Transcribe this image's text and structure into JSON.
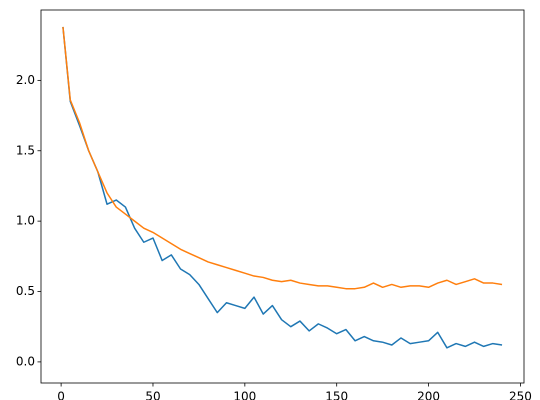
{
  "chart_data": {
    "type": "line",
    "x": [
      1,
      5,
      10,
      15,
      20,
      25,
      30,
      35,
      40,
      45,
      50,
      55,
      60,
      65,
      70,
      75,
      80,
      85,
      90,
      95,
      100,
      105,
      110,
      115,
      120,
      125,
      130,
      135,
      140,
      145,
      150,
      155,
      160,
      165,
      170,
      175,
      180,
      185,
      190,
      195,
      200,
      205,
      210,
      215,
      220,
      225,
      230,
      235,
      240
    ],
    "series": [
      {
        "color": "#1f77b4",
        "values": [
          2.38,
          1.85,
          1.68,
          1.5,
          1.35,
          1.12,
          1.15,
          1.1,
          0.95,
          0.85,
          0.88,
          0.72,
          0.76,
          0.66,
          0.62,
          0.55,
          0.45,
          0.35,
          0.42,
          0.4,
          0.38,
          0.46,
          0.34,
          0.4,
          0.3,
          0.25,
          0.29,
          0.22,
          0.27,
          0.24,
          0.2,
          0.23,
          0.15,
          0.18,
          0.15,
          0.14,
          0.12,
          0.17,
          0.13,
          0.14,
          0.15,
          0.21,
          0.1,
          0.13,
          0.11,
          0.14,
          0.11,
          0.13,
          0.12
        ]
      },
      {
        "color": "#ff7f0e",
        "values": [
          2.38,
          1.86,
          1.7,
          1.5,
          1.35,
          1.2,
          1.1,
          1.05,
          1.0,
          0.95,
          0.92,
          0.88,
          0.84,
          0.8,
          0.77,
          0.74,
          0.71,
          0.69,
          0.67,
          0.65,
          0.63,
          0.61,
          0.6,
          0.58,
          0.57,
          0.58,
          0.56,
          0.55,
          0.54,
          0.54,
          0.53,
          0.52,
          0.52,
          0.53,
          0.56,
          0.53,
          0.55,
          0.53,
          0.54,
          0.54,
          0.53,
          0.56,
          0.58,
          0.55,
          0.57,
          0.59,
          0.56,
          0.56,
          0.55
        ]
      }
    ],
    "xlim": [
      -10.95,
      251.95
    ],
    "xticks": [
      0,
      50,
      100,
      150,
      200,
      250
    ],
    "ylim": [
      -0.15,
      2.5
    ],
    "yticks": [
      {
        "value": 0,
        "label": "0.0"
      },
      {
        "value": 0.5,
        "label": "0.5"
      },
      {
        "value": 1,
        "label": "1.0"
      },
      {
        "value": 1.5,
        "label": "1.5"
      },
      {
        "value": 2,
        "label": "2.0"
      }
    ]
  }
}
